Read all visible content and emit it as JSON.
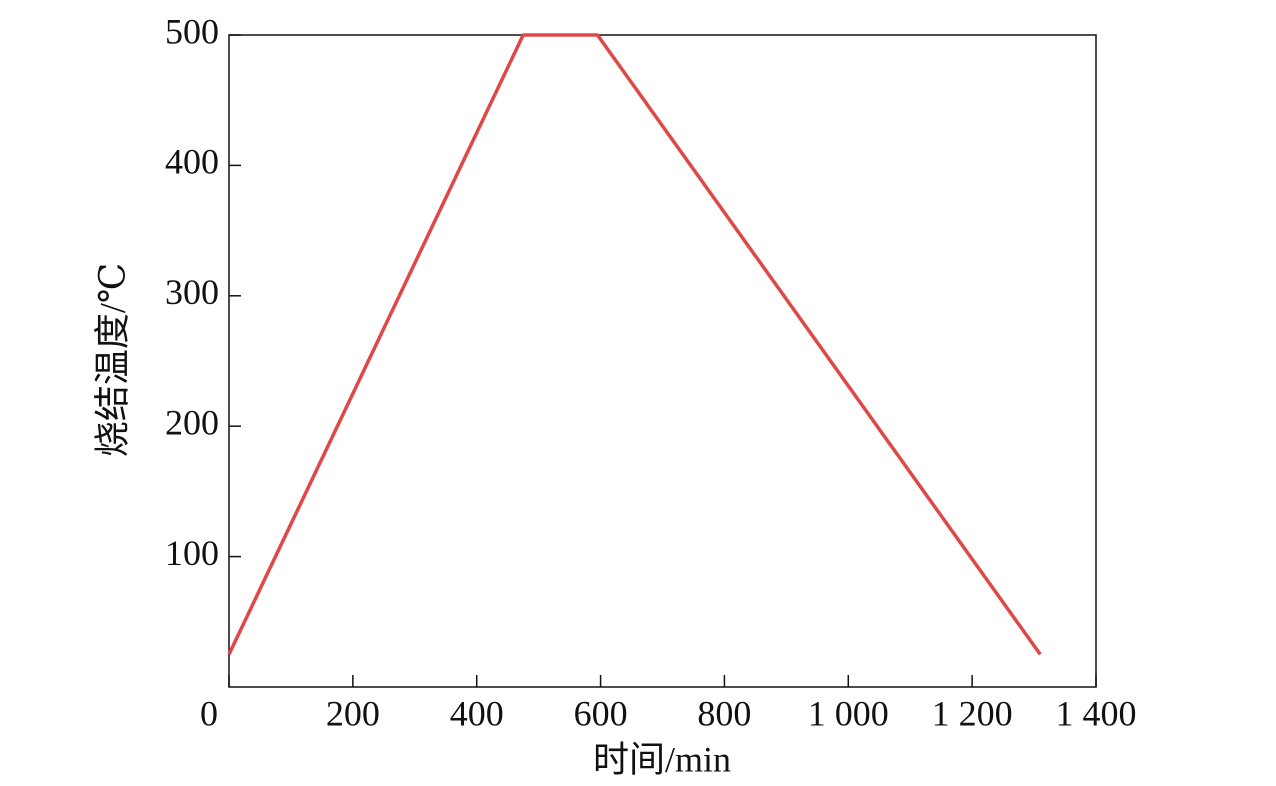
{
  "chart_data": {
    "type": "line",
    "x_label": "时间/min",
    "y_label": "烧结温度/℃",
    "x": [
      0,
      475,
      595,
      1310
    ],
    "series": [
      {
        "color": "#e04848",
        "values": [
          25,
          500,
          500,
          25
        ]
      }
    ],
    "xlim": [
      0,
      1400
    ],
    "xticks": [
      0,
      200,
      400,
      600,
      800,
      {
        "value": 1000,
        "label": "1 000"
      },
      {
        "value": 1200,
        "label": "1 200"
      },
      {
        "value": 1400,
        "label": "1 400"
      }
    ],
    "ylim": [
      0,
      500
    ],
    "yticks": [
      100,
      200,
      300,
      400,
      500
    ]
  }
}
